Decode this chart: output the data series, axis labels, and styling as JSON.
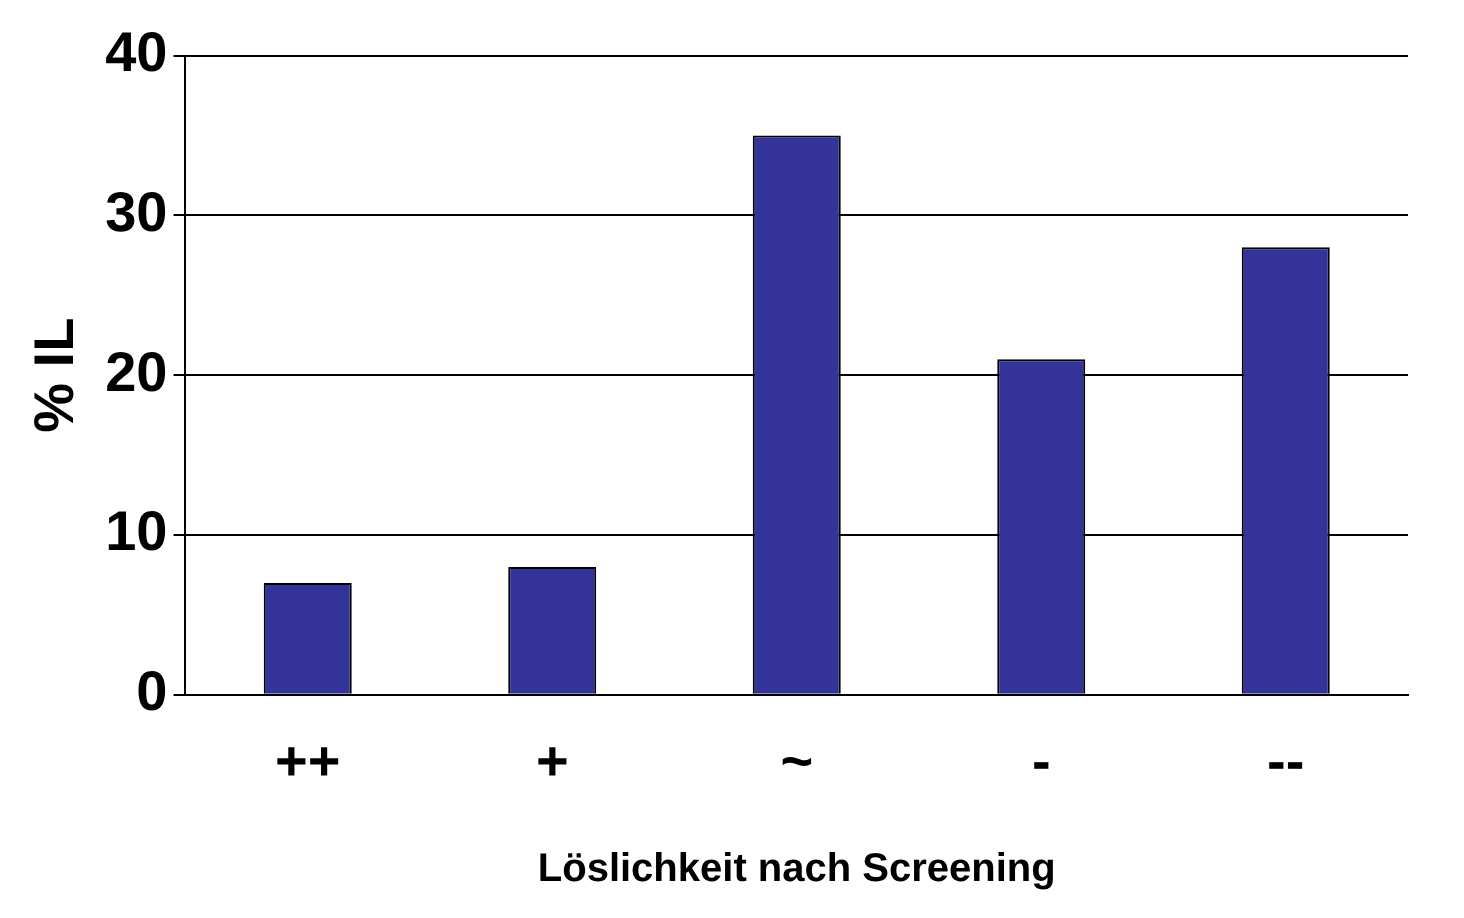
{
  "chart_data": {
    "type": "bar",
    "xlabel": "Löslichkeit nach Screening",
    "ylabel": "% IL",
    "categories": [
      "++",
      "+",
      "~",
      "-",
      "--"
    ],
    "values": [
      7,
      8,
      35,
      21,
      28
    ],
    "color": "#333399",
    "ylim": [
      0,
      40
    ],
    "yticks": [
      0,
      10,
      20,
      30,
      40
    ],
    "grid": "y"
  }
}
